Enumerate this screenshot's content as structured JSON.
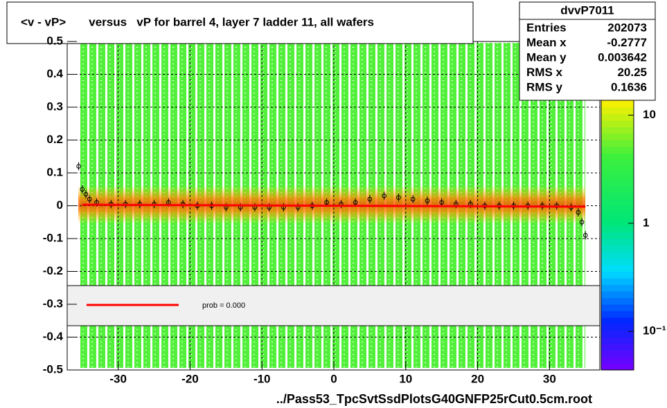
{
  "chart_data": {
    "type": "scatter",
    "title": "<v - vP>       versus   vP for barrel 4, layer 7 ladder 11, all wafers",
    "x_label": "../Pass53_TpcSvtSsdPlotsG40GNFP25rCut0.5cm.root",
    "xlim": [
      -37.1,
      37.0
    ],
    "ylim": [
      -0.5,
      0.5
    ],
    "xticks": [
      -30,
      -20,
      -10,
      0,
      10,
      20,
      30
    ],
    "yticks": [
      -0.5,
      -0.4,
      -0.3,
      -0.2,
      -0.1,
      0,
      0.1,
      0.2,
      0.3,
      0.4,
      0.5
    ],
    "grid": true,
    "series": [
      {
        "color": "#000000",
        "x": [
          -35.5,
          -35,
          -34.5,
          -34,
          -33,
          -31,
          -29,
          -27,
          -25,
          -23,
          -21,
          -19,
          -17,
          -15,
          -13,
          -11,
          -9,
          -7,
          -5,
          -3,
          -1,
          1,
          3,
          5,
          7,
          9,
          11,
          13,
          15,
          17,
          19,
          21,
          23,
          25,
          27,
          29,
          31,
          33,
          34,
          34.5,
          35
        ],
        "values": [
          0.12,
          0.05,
          0.035,
          0.02,
          0.01,
          0.005,
          0.005,
          0.005,
          0.005,
          0.01,
          0.005,
          0.0,
          0.0,
          -0.005,
          -0.005,
          -0.005,
          -0.005,
          -0.005,
          -0.005,
          0.0,
          0.01,
          0.005,
          0.01,
          0.02,
          0.03,
          0.025,
          0.02,
          0.015,
          0.01,
          0.005,
          0.005,
          0.0,
          0.0,
          0.0,
          0.0,
          0.0,
          0.0,
          -0.005,
          -0.02,
          -0.05,
          -0.09
        ]
      },
      {
        "color": "#ff0000",
        "x": [
          -35,
          35
        ],
        "values": [
          0.003,
          -0.003
        ]
      }
    ],
    "legend": {
      "label": "prob = 0.000"
    },
    "zlim": [
      0.044,
      48
    ],
    "zscale": "log",
    "zticks": [
      {
        "value": 0.1,
        "label": "10⁻¹"
      },
      {
        "value": 1,
        "label": "1"
      },
      {
        "value": 10,
        "label": "10"
      }
    ],
    "stats": {
      "title": "dvvP7011",
      "rows": [
        [
          "Entries",
          "202073"
        ],
        [
          "Mean x",
          "-0.2777"
        ],
        [
          "Mean y",
          "0.003642"
        ],
        [
          "RMS x",
          "20.25"
        ],
        [
          "RMS y",
          "0.1636"
        ]
      ]
    }
  }
}
